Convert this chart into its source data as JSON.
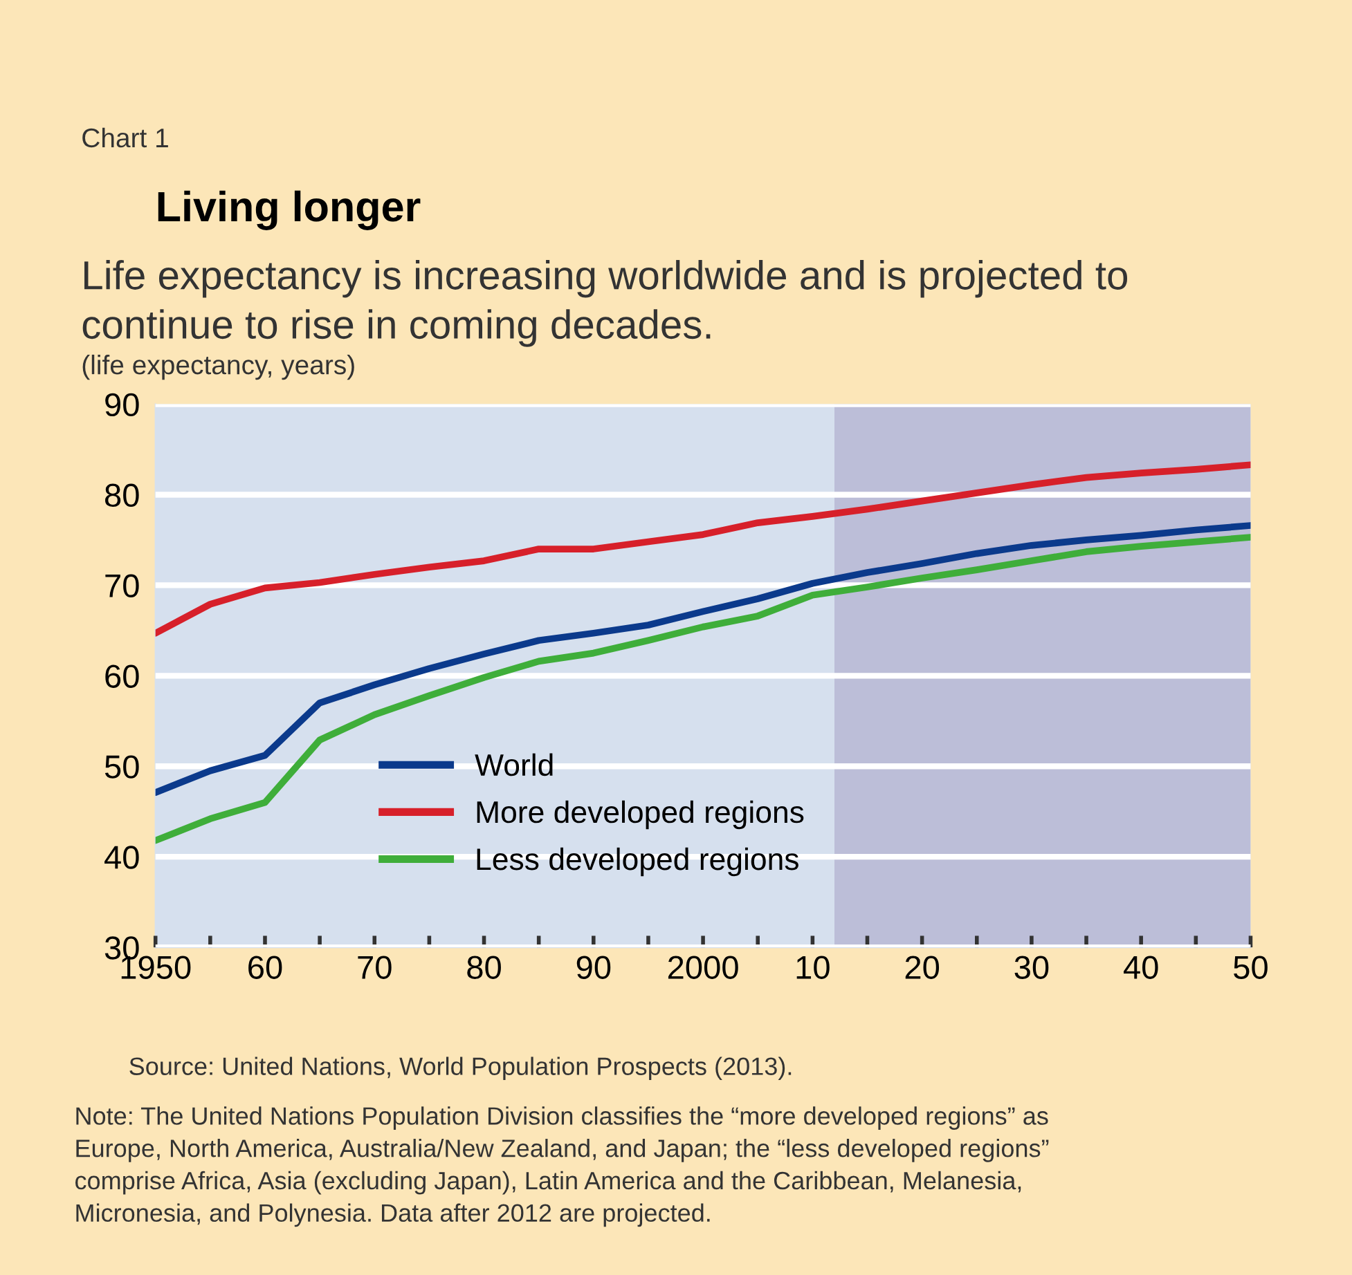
{
  "chart_data": {
    "type": "line",
    "title": "Living longer",
    "subtitle": "Life expectancy is increasing worldwide and is projected to\ncontinue to rise in coming decades.",
    "ylabel": "(life expectancy, years)",
    "annotations": [
      "Chart 1",
      "Source: United Nations, World Population Prospects (2013).",
      "Note: The United Nations Population Division classifies the “more developed regions” as\nEurope, North America, Australia/New Zealand, and Japan; the “less developed regions”\ncomprise Africa, Asia (excluding Japan), Latin America and the Caribbean, Melanesia,\nMicronesia, and Polynesia. Data after 2012 are projected."
    ],
    "x": [
      1950,
      1955,
      1960,
      1965,
      1970,
      1975,
      1980,
      1985,
      1990,
      1995,
      2000,
      2005,
      2010,
      2015,
      2020,
      2025,
      2030,
      2035,
      2040,
      2045,
      2050
    ],
    "series": [
      {
        "name": "World",
        "color": "#0b3a8c",
        "values": [
          47.1,
          49.5,
          51.2,
          57.0,
          59.0,
          60.8,
          62.4,
          63.9,
          64.7,
          65.6,
          67.1,
          68.5,
          70.2,
          71.4,
          72.4,
          73.5,
          74.4,
          75.0,
          75.5,
          76.1,
          76.6
        ]
      },
      {
        "name": "More developed regions",
        "color": "#d7202a",
        "values": [
          64.7,
          67.9,
          69.7,
          70.3,
          71.2,
          72.0,
          72.7,
          74.0,
          74.0,
          74.8,
          75.6,
          76.9,
          77.6,
          78.4,
          79.3,
          80.2,
          81.1,
          81.9,
          82.4,
          82.8,
          83.3
        ]
      },
      {
        "name": "Less developed regions",
        "color": "#3fae3a",
        "values": [
          41.8,
          44.2,
          46.0,
          52.9,
          55.7,
          57.8,
          59.8,
          61.6,
          62.5,
          63.9,
          65.4,
          66.6,
          68.9,
          69.8,
          70.8,
          71.7,
          72.7,
          73.7,
          74.3,
          74.8,
          75.3
        ]
      }
    ],
    "xlim": [
      1950,
      2050
    ],
    "xticks": [
      1950,
      {
        "value": 1955,
        "label": null
      },
      {
        "value": 1960,
        "label": "60"
      },
      {
        "value": 1965,
        "label": null
      },
      {
        "value": 1970,
        "label": "70"
      },
      {
        "value": 1975,
        "label": null
      },
      {
        "value": 1980,
        "label": "80"
      },
      {
        "value": 1985,
        "label": null
      },
      {
        "value": 1990,
        "label": "90"
      },
      {
        "value": 1995,
        "label": null
      },
      2000,
      {
        "value": 2005,
        "label": null
      },
      {
        "value": 2010,
        "label": "10"
      },
      {
        "value": 2015,
        "label": null
      },
      {
        "value": 2020,
        "label": "20"
      },
      {
        "value": 2025,
        "label": null
      },
      {
        "value": 2030,
        "label": "30"
      },
      {
        "value": 2035,
        "label": null
      },
      {
        "value": 2040,
        "label": "40"
      },
      {
        "value": 2045,
        "label": null
      },
      {
        "value": 2050,
        "label": "50"
      }
    ],
    "ylim": [
      30,
      90
    ],
    "yticks": [
      30,
      40,
      50,
      60,
      70,
      80,
      90
    ],
    "bands": [
      {
        "axis": "x",
        "from": 2012,
        "to": 2050,
        "color": "#bcbed8"
      }
    ],
    "grid": "y",
    "legend": "bottom",
    "marker": "none",
    "line_style": "solid"
  }
}
